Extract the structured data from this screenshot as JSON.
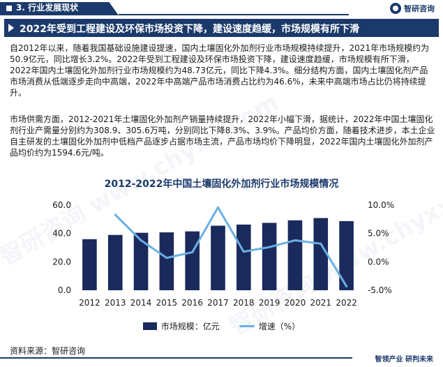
{
  "section": {
    "label": "3. 行业发展现状"
  },
  "brand": {
    "name": "智研咨询"
  },
  "headline": "2022年受到工程建设及环保市场投资下降，建设速度趋缓，市场规模有所下滑",
  "paragraphs": [
    "自2012年以来，随着我国基础设施建设提速，国内土壤固化外加剂行业市场规模持续提升，2021年市场规模约为50.9亿元，同比增长3.2%。2022年受到工程建设及环保市场投资下降，建设速度趋缓，市场规模有所下滑，2022年国内土壤固化外加剂行业市场规模约为48.73亿元，同比下降4.3%。细分结构方面，国内土壤固化剂产品市场消费从低端逐步走向中高端，2022年中高端产品市场消费占比约为46.6%，未来中高端市场占比仍将持续提升。",
    "市场供需方面，2012-2021年土壤固化外加剂产销量持续提升，2022年小幅下滑，据统计，2022年中国土壤固化剂行业产需量分别约为308.9、305.6万吨，分别同比下降8.3%、3.9%。产品均价方面，随着技术进步，本土企业自主研发的土壤固化外加剂中低档产品逐步占据市场主流，产品市场均价下降明显，2022年国内土壤固化外加剂产品均价约为1594.6元/吨。"
  ],
  "chart_data": {
    "type": "bar",
    "title": "2012-2022年中国土壤固化外加剂行业市场规模情况",
    "categories": [
      "2012",
      "2013",
      "2014",
      "2015",
      "2016",
      "2017",
      "2018",
      "2019",
      "2020",
      "2021",
      "2022"
    ],
    "series": [
      {
        "name": "市场规模：亿元",
        "type": "bar",
        "axis": "left",
        "color": "#1b2a5c",
        "values": [
          36.0,
          39.0,
          40.5,
          40.8,
          41.5,
          45.5,
          46.3,
          47.5,
          49.3,
          50.9,
          48.73
        ]
      },
      {
        "name": "增速（%）",
        "type": "line",
        "axis": "right",
        "color": "#6ab0e4",
        "values": [
          null,
          8.3,
          3.8,
          0.7,
          1.7,
          9.6,
          1.8,
          2.6,
          3.8,
          3.2,
          -4.3
        ]
      }
    ],
    "y_left": {
      "min": 0,
      "max": 60,
      "ticks": [
        "60.0",
        "40.0",
        "20.0",
        "0.0"
      ]
    },
    "y_right": {
      "min": -5,
      "max": 10,
      "ticks": [
        "10.0%",
        "5.0%",
        "0.0%",
        "-5.0%"
      ]
    },
    "legend_position": "bottom"
  },
  "source": "资料来源：智研咨询",
  "slogan": "智领产业 研判未来",
  "watermark": "智研咨询 www.chyxx.com"
}
